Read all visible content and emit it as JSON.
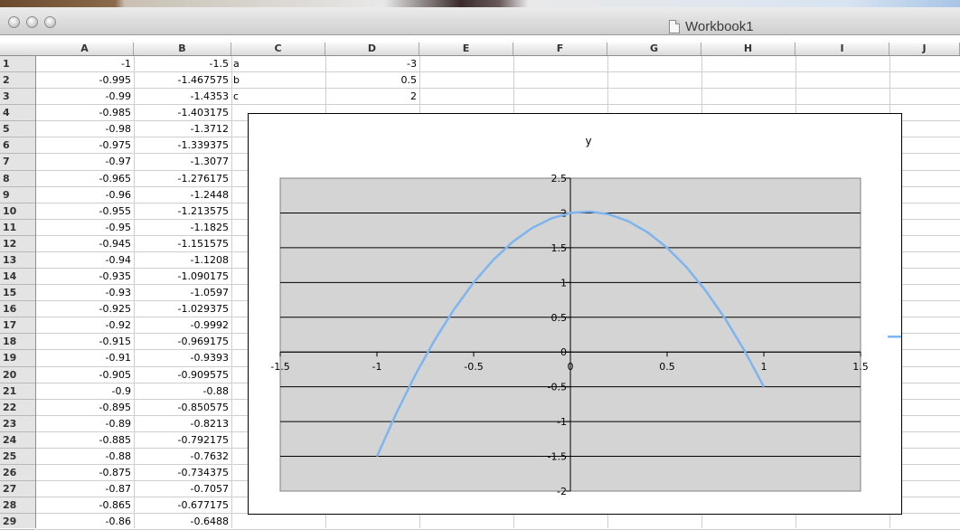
{
  "window": {
    "title": "Workbook1"
  },
  "corner_label": "◇",
  "columns": [
    "A",
    "B",
    "C",
    "D",
    "E",
    "F",
    "G",
    "H",
    "I",
    "J"
  ],
  "rows": [
    "1",
    "2",
    "3",
    "4",
    "5",
    "6",
    "7",
    "8",
    "9",
    "10",
    "11",
    "12",
    "13",
    "14",
    "15",
    "16",
    "17",
    "18",
    "19",
    "20",
    "21",
    "22",
    "23",
    "24",
    "25",
    "26",
    "27",
    "28",
    "29"
  ],
  "col_a": [
    "-1",
    "-0.995",
    "-0.99",
    "-0.985",
    "-0.98",
    "-0.975",
    "-0.97",
    "-0.965",
    "-0.96",
    "-0.955",
    "-0.95",
    "-0.945",
    "-0.94",
    "-0.935",
    "-0.93",
    "-0.925",
    "-0.92",
    "-0.915",
    "-0.91",
    "-0.905",
    "-0.9",
    "-0.895",
    "-0.89",
    "-0.885",
    "-0.88",
    "-0.875",
    "-0.87",
    "-0.865",
    "-0.86"
  ],
  "col_b": [
    "-1.5",
    "-1.467575",
    "-1.4353",
    "-1.403175",
    "-1.3712",
    "-1.339375",
    "-1.3077",
    "-1.276175",
    "-1.2448",
    "-1.213575",
    "-1.1825",
    "-1.151575",
    "-1.1208",
    "-1.090175",
    "-1.0597",
    "-1.029375",
    "-0.9992",
    "-0.969175",
    "-0.9393",
    "-0.909575",
    "-0.88",
    "-0.850575",
    "-0.8213",
    "-0.792175",
    "-0.7632",
    "-0.734375",
    "-0.7057",
    "-0.677175",
    "-0.6488"
  ],
  "col_c": [
    "a",
    "b",
    "c"
  ],
  "col_d": [
    "-3",
    "0.5",
    "2"
  ],
  "colors": {
    "series": "#7fb5ee",
    "plot_area": "#d4d4d4",
    "gridline": "#000000"
  },
  "chart_data": {
    "type": "line",
    "title": "y",
    "legend": {
      "position": "right",
      "entries": [
        "y"
      ]
    },
    "xlim": [
      -1.5,
      1.5
    ],
    "ylim": [
      -2,
      2.5
    ],
    "x_ticks": [
      "-1.5",
      "-1",
      "-0.5",
      "0",
      "0.5",
      "1",
      "1.5"
    ],
    "y_ticks": [
      "2.5",
      "2",
      "1.5",
      "1",
      "0.5",
      "0",
      "-0.5",
      "-1",
      "-1.5",
      "-2"
    ],
    "grid": true,
    "series": [
      {
        "name": "y",
        "x": [
          -1,
          -0.9,
          -0.8,
          -0.7,
          -0.6,
          -0.5,
          -0.4,
          -0.3,
          -0.2,
          -0.1,
          0,
          0.1,
          0.2,
          0.3,
          0.4,
          0.5,
          0.6,
          0.7,
          0.8,
          0.9,
          1
        ],
        "y": [
          -1.5,
          -0.88,
          -0.32,
          0.18,
          0.62,
          1.0,
          1.32,
          1.58,
          1.78,
          1.92,
          2.0,
          2.02,
          1.98,
          1.88,
          1.72,
          1.5,
          1.22,
          0.88,
          0.48,
          0.02,
          -0.5
        ]
      }
    ]
  }
}
